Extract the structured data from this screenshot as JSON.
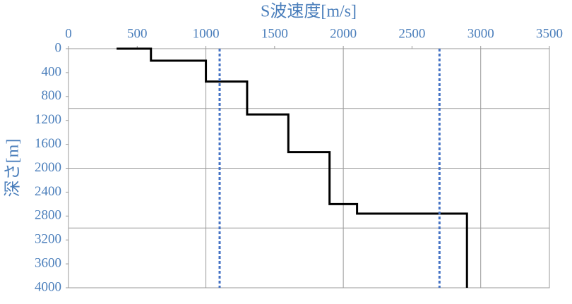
{
  "chart_data": {
    "type": "line",
    "xlabel": "S波速度[m/s]",
    "ylabel": "深さ[m]",
    "xlim": [
      0,
      3500
    ],
    "xticks": [
      0,
      500,
      1000,
      1500,
      2000,
      2500,
      3000,
      3500
    ],
    "ylim": [
      0,
      4000
    ],
    "yticks": [
      0,
      400,
      800,
      1200,
      1600,
      2000,
      2400,
      2800,
      3200,
      3600,
      4000
    ],
    "y_inverted": true,
    "x_axis_position": "top",
    "xgrid": [
      1000,
      2000,
      3000
    ],
    "ygrid": [
      1000,
      2000,
      3000
    ],
    "series": [
      {
        "color": "#000000",
        "style": "solid",
        "x": [
          350,
          600,
          600,
          1000,
          1000,
          1300,
          1300,
          1600,
          1600,
          1900,
          1900,
          2100,
          2100,
          2900,
          2900
        ],
        "y": [
          0,
          0,
          200,
          200,
          550,
          550,
          1100,
          1100,
          1730,
          1730,
          2600,
          2600,
          2760,
          2760,
          4000
        ]
      },
      {
        "color": "#4472c4",
        "style": "dashed",
        "x": [
          1100,
          1100
        ],
        "y": [
          0,
          4000
        ]
      },
      {
        "color": "#4472c4",
        "style": "dashed",
        "x": [
          2700,
          2700
        ],
        "y": [
          0,
          4000
        ]
      }
    ]
  }
}
